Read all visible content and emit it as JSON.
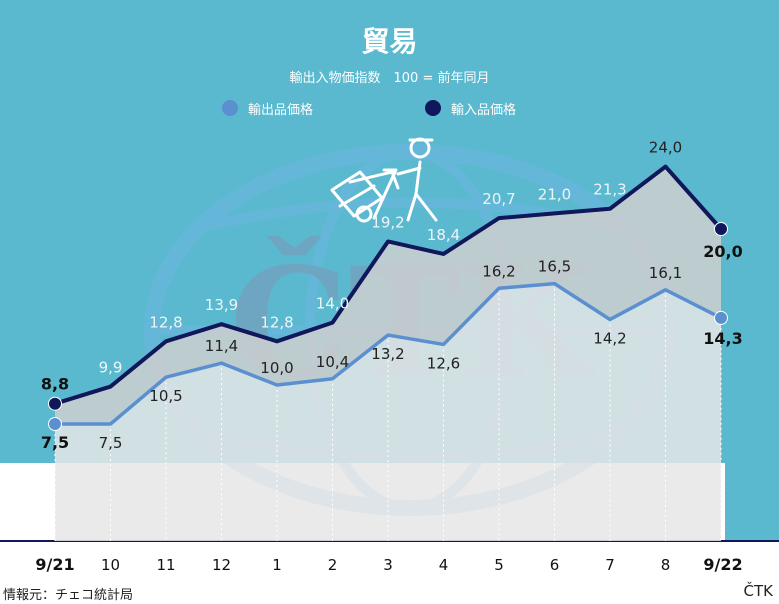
{
  "header": {
    "title": "貿易",
    "subtitle": "輸出入物価指数　100 = 前年同月"
  },
  "legend": {
    "items": [
      {
        "label": "輸出品価格",
        "color": "#5b8fcf"
      },
      {
        "label": "輸入品価格",
        "color": "#10175a"
      }
    ]
  },
  "footer": {
    "source": "情報元：チェコ統計局",
    "brand": "ČTK"
  },
  "watermark": {
    "text": "ČTK"
  },
  "chart_data": {
    "type": "line",
    "categories": [
      "9/21",
      "10",
      "11",
      "12",
      "1",
      "2",
      "3",
      "4",
      "5",
      "6",
      "7",
      "8",
      "9/22"
    ],
    "series": [
      {
        "name": "輸入品価格",
        "color": "#10175a",
        "values": [
          8.8,
          9.9,
          12.8,
          13.9,
          12.8,
          14.0,
          19.2,
          18.4,
          20.7,
          21.0,
          21.3,
          24.0,
          20.0
        ],
        "labels": [
          "8,8",
          "9,9",
          "12,8",
          "13,9",
          "12,8",
          "14,0",
          "19,2",
          "18,4",
          "20,7",
          "21,0",
          "21,3",
          "24,0",
          "20,0"
        ]
      },
      {
        "name": "輸出品価格",
        "color": "#5b8fcf",
        "values": [
          7.5,
          7.5,
          10.5,
          11.4,
          10.0,
          10.4,
          13.2,
          12.6,
          16.2,
          16.5,
          14.2,
          16.1,
          14.3
        ],
        "labels": [
          "7,5",
          "7,5",
          "10,5",
          "11,4",
          "10,0",
          "10,4",
          "13,2",
          "12,6",
          "16,2",
          "16,5",
          "14,2",
          "16,1",
          "14,3"
        ]
      }
    ],
    "ylim": [
      0,
      27
    ],
    "grid": false,
    "legend_position": "top"
  }
}
